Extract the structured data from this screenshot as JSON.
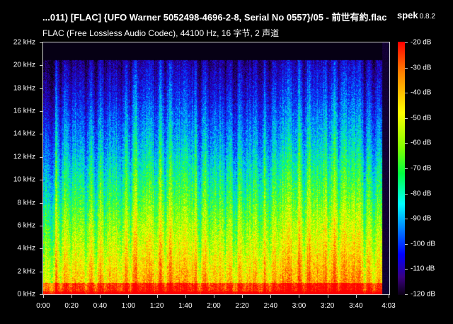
{
  "header": {
    "file_title": "...011) [FLAC] {UFO Warner 5052498-4696-2-8, Serial No 0557}/05 - 前世有約.flac",
    "app_name": "spek",
    "app_version": "0.8.2",
    "stream_info": "FLAC (Free Lossless Audio Codec), 44100 Hz, 16 字节, 2 声道"
  },
  "chart_data": {
    "type": "heatmap",
    "y_axis": {
      "unit": "kHz",
      "labels": [
        "22 kHz",
        "20 kHz",
        "18 kHz",
        "16 kHz",
        "14 kHz",
        "12 kHz",
        "10 kHz",
        "8 kHz",
        "6 kHz",
        "4 kHz",
        "2 kHz",
        "0 kHz"
      ],
      "values": [
        22,
        20,
        18,
        16,
        14,
        12,
        10,
        8,
        6,
        4,
        2,
        0
      ],
      "range": [
        0,
        22
      ]
    },
    "x_axis": {
      "labels": [
        "0:00",
        "0:20",
        "0:40",
        "1:00",
        "1:20",
        "1:40",
        "2:00",
        "2:20",
        "2:40",
        "3:00",
        "3:20",
        "3:40",
        "4:03"
      ],
      "seconds": [
        0,
        20,
        40,
        60,
        80,
        100,
        120,
        140,
        160,
        180,
        200,
        220,
        243
      ],
      "range": [
        0,
        243
      ]
    },
    "colorbar": {
      "labels": [
        "-20 dB",
        "-30 dB",
        "-40 dB",
        "-50 dB",
        "-60 dB",
        "-70 dB",
        "-80 dB",
        "-90 dB",
        "-100 dB",
        "-110 dB",
        "-120 dB"
      ],
      "values": [
        -20,
        -30,
        -40,
        -50,
        -60,
        -70,
        -80,
        -90,
        -100,
        -110,
        -120
      ],
      "colors": [
        "#ff0000",
        "#ff8000",
        "#ffff00",
        "#80ff00",
        "#00ff40",
        "#00ffff",
        "#0080ff",
        "#0000ff",
        "#3a0080",
        "#0a0014"
      ]
    },
    "music_end_seconds": 238,
    "high_freq_cutoff_khz": 20.5
  }
}
